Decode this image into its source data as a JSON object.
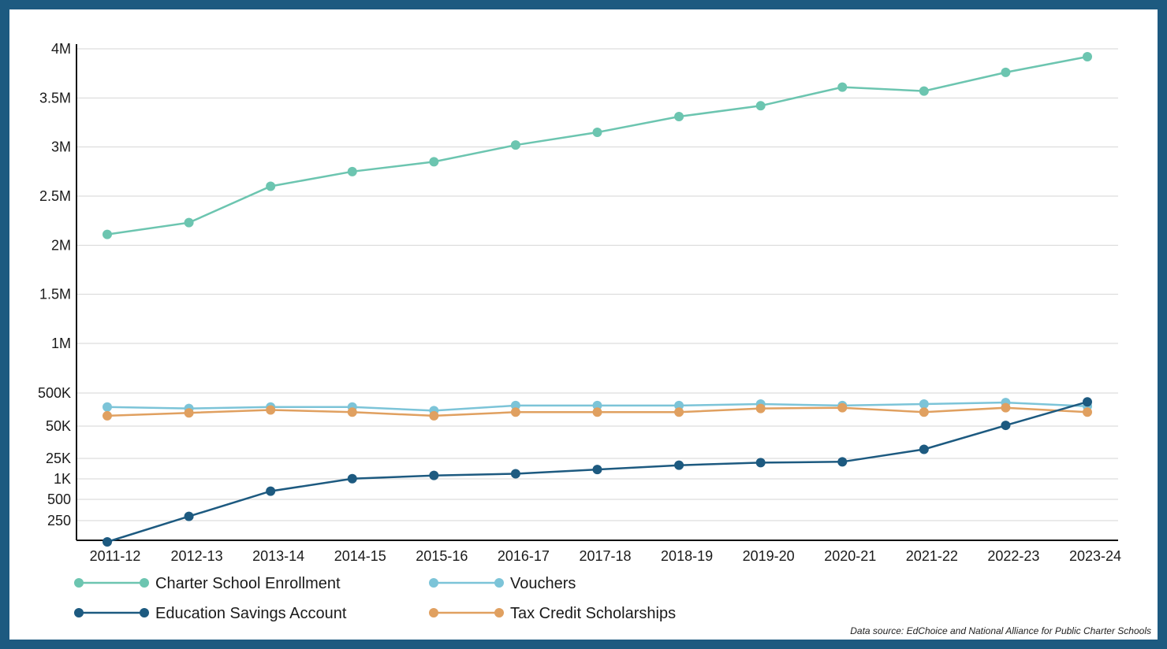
{
  "chart_data": {
    "type": "line",
    "title": "",
    "xlabel": "",
    "ylabel": "",
    "scale": "piecewise (lower band 250–500K compressed, upper band 500K–4M linear)",
    "grid": "horizontal",
    "legend_position": "bottom-left",
    "categories": [
      "2011-12",
      "2012-13",
      "2013-14",
      "2014-15",
      "2015-16",
      "2016-17",
      "2017-18",
      "2018-19",
      "2019-20",
      "2020-21",
      "2021-22",
      "2022-23",
      "2023-24"
    ],
    "y_ticks": [
      {
        "value": 250,
        "label": "250"
      },
      {
        "value": 500,
        "label": "500"
      },
      {
        "value": 1000,
        "label": "1K"
      },
      {
        "value": 25000,
        "label": "25K"
      },
      {
        "value": 50000,
        "label": "50K"
      },
      {
        "value": 500000,
        "label": "500K"
      },
      {
        "value": 1000000,
        "label": "1M"
      },
      {
        "value": 1500000,
        "label": "1.5M"
      },
      {
        "value": 2000000,
        "label": "2M"
      },
      {
        "value": 2500000,
        "label": "2.5M"
      },
      {
        "value": 3000000,
        "label": "3M"
      },
      {
        "value": 3500000,
        "label": "3.5M"
      },
      {
        "value": 4000000,
        "label": "4M"
      }
    ],
    "series": [
      {
        "name": "Charter School Enrollment",
        "color": "#6cc5b0",
        "values": [
          2110000,
          2230000,
          2600000,
          2750000,
          2850000,
          3020000,
          3150000,
          3310000,
          3420000,
          3610000,
          3570000,
          3760000,
          3920000
        ]
      },
      {
        "name": "Vouchers",
        "color": "#7cc4d8",
        "values": [
          310000,
          290000,
          310000,
          310000,
          260000,
          330000,
          330000,
          330000,
          350000,
          330000,
          350000,
          370000,
          320000
        ]
      },
      {
        "name": "Education Savings Account",
        "color": "#1d5a80",
        "values": [
          150,
          300,
          700,
          1200,
          5000,
          7000,
          12000,
          17000,
          20000,
          21000,
          32000,
          60000,
          380000
        ]
      },
      {
        "name": "Tax Credit Scholarships",
        "color": "#e0a060",
        "values": [
          190000,
          230000,
          270000,
          240000,
          190000,
          240000,
          240000,
          240000,
          290000,
          300000,
          240000,
          300000,
          240000
        ]
      }
    ]
  },
  "footer": {
    "source": "Data source: EdChoice and National Alliance for Public Charter Schools"
  }
}
